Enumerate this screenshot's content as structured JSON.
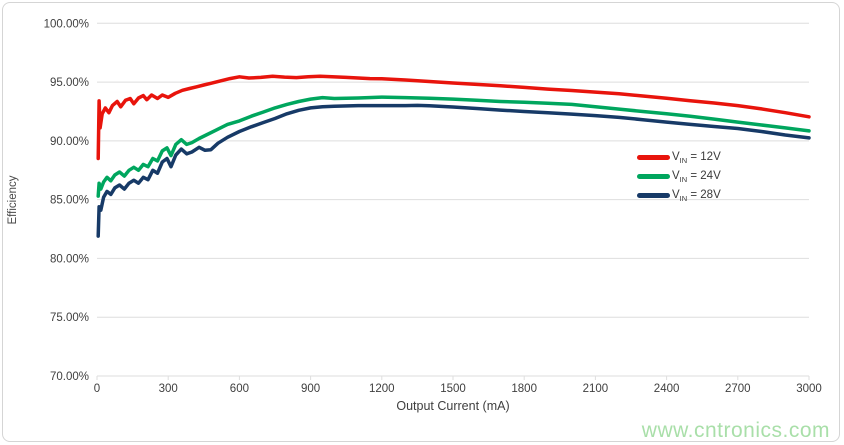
{
  "watermark": {
    "text": "www.cntronics.com"
  },
  "style_colors": {
    "grid": "#dedede",
    "axis_text": "#3f3f3f",
    "watermark_green": "#a9dfa9",
    "frame_border": "#d5d5d5",
    "series_red": "#e8140c",
    "series_green": "#00a65e",
    "series_navy": "#173a67"
  },
  "chart_data": {
    "type": "line",
    "title": "",
    "xlabel": "Output Current (mA)",
    "ylabel": "Efficiency",
    "xlim": [
      0,
      3000
    ],
    "ylim": [
      70,
      100
    ],
    "grid": "horizontal-only",
    "legend_position": "right-middle",
    "x_ticks": [
      0,
      300,
      600,
      900,
      1200,
      1500,
      1800,
      2100,
      2400,
      2700,
      3000
    ],
    "y_ticks": [
      {
        "value": 100,
        "label": "100.00%"
      },
      {
        "value": 95,
        "label": "95.00%"
      },
      {
        "value": 90,
        "label": "90.00%"
      },
      {
        "value": 85,
        "label": "85.00%"
      },
      {
        "value": 80,
        "label": "80.00%"
      },
      {
        "value": 75,
        "label": "75.00%"
      },
      {
        "value": 70,
        "label": "70.00%"
      }
    ],
    "series": [
      {
        "name": "VIN = 12V",
        "label_prefix": "V",
        "label_sub": "IN",
        "label_rest": " = 12V",
        "color": "#e8140c",
        "points": [
          [
            5,
            88.5
          ],
          [
            9,
            93.4
          ],
          [
            13,
            91.1
          ],
          [
            22,
            92.3
          ],
          [
            35,
            92.8
          ],
          [
            50,
            92.4
          ],
          [
            65,
            93.0
          ],
          [
            85,
            93.35
          ],
          [
            100,
            92.9
          ],
          [
            120,
            93.45
          ],
          [
            140,
            93.6
          ],
          [
            155,
            93.15
          ],
          [
            175,
            93.65
          ],
          [
            195,
            93.85
          ],
          [
            210,
            93.5
          ],
          [
            230,
            93.9
          ],
          [
            255,
            93.6
          ],
          [
            275,
            93.9
          ],
          [
            300,
            93.7
          ],
          [
            330,
            94.05
          ],
          [
            360,
            94.3
          ],
          [
            390,
            94.45
          ],
          [
            420,
            94.6
          ],
          [
            450,
            94.75
          ],
          [
            480,
            94.9
          ],
          [
            520,
            95.1
          ],
          [
            560,
            95.3
          ],
          [
            600,
            95.45
          ],
          [
            640,
            95.35
          ],
          [
            690,
            95.4
          ],
          [
            740,
            95.5
          ],
          [
            790,
            95.42
          ],
          [
            840,
            95.38
          ],
          [
            890,
            95.45
          ],
          [
            940,
            95.5
          ],
          [
            990,
            95.45
          ],
          [
            1050,
            95.4
          ],
          [
            1100,
            95.35
          ],
          [
            1150,
            95.3
          ],
          [
            1200,
            95.28
          ],
          [
            1300,
            95.18
          ],
          [
            1400,
            95.05
          ],
          [
            1500,
            94.92
          ],
          [
            1600,
            94.8
          ],
          [
            1700,
            94.68
          ],
          [
            1800,
            94.55
          ],
          [
            1900,
            94.4
          ],
          [
            2000,
            94.28
          ],
          [
            2100,
            94.15
          ],
          [
            2200,
            94.0
          ],
          [
            2300,
            93.82
          ],
          [
            2400,
            93.62
          ],
          [
            2500,
            93.42
          ],
          [
            2600,
            93.22
          ],
          [
            2700,
            93.0
          ],
          [
            2800,
            92.72
          ],
          [
            2900,
            92.4
          ],
          [
            3000,
            92.05
          ]
        ]
      },
      {
        "name": "VIN = 24V",
        "label_prefix": "V",
        "label_sub": "IN",
        "label_rest": " = 24V",
        "color": "#00a65e",
        "points": [
          [
            5,
            85.3
          ],
          [
            9,
            86.4
          ],
          [
            16,
            85.9
          ],
          [
            28,
            86.5
          ],
          [
            42,
            86.9
          ],
          [
            58,
            86.6
          ],
          [
            75,
            87.1
          ],
          [
            95,
            87.35
          ],
          [
            115,
            87.0
          ],
          [
            135,
            87.5
          ],
          [
            155,
            87.75
          ],
          [
            175,
            87.5
          ],
          [
            195,
            88.0
          ],
          [
            215,
            87.8
          ],
          [
            235,
            88.5
          ],
          [
            255,
            88.3
          ],
          [
            275,
            89.15
          ],
          [
            295,
            89.4
          ],
          [
            312,
            88.75
          ],
          [
            332,
            89.7
          ],
          [
            355,
            90.1
          ],
          [
            378,
            89.7
          ],
          [
            400,
            89.85
          ],
          [
            430,
            90.2
          ],
          [
            460,
            90.5
          ],
          [
            500,
            90.9
          ],
          [
            550,
            91.4
          ],
          [
            600,
            91.7
          ],
          [
            650,
            92.1
          ],
          [
            700,
            92.45
          ],
          [
            750,
            92.8
          ],
          [
            800,
            93.1
          ],
          [
            850,
            93.35
          ],
          [
            900,
            93.55
          ],
          [
            950,
            93.68
          ],
          [
            1000,
            93.6
          ],
          [
            1100,
            93.65
          ],
          [
            1200,
            93.72
          ],
          [
            1300,
            93.68
          ],
          [
            1400,
            93.62
          ],
          [
            1500,
            93.55
          ],
          [
            1600,
            93.45
          ],
          [
            1700,
            93.35
          ],
          [
            1800,
            93.28
          ],
          [
            1900,
            93.2
          ],
          [
            2000,
            93.1
          ],
          [
            2100,
            92.9
          ],
          [
            2200,
            92.7
          ],
          [
            2300,
            92.5
          ],
          [
            2400,
            92.3
          ],
          [
            2500,
            92.1
          ],
          [
            2600,
            91.85
          ],
          [
            2700,
            91.6
          ],
          [
            2800,
            91.35
          ],
          [
            2900,
            91.1
          ],
          [
            3000,
            90.85
          ]
        ]
      },
      {
        "name": "VIN = 28V",
        "label_prefix": "V",
        "label_sub": "IN",
        "label_rest": " = 28V",
        "color": "#173a67",
        "points": [
          [
            5,
            81.9
          ],
          [
            9,
            84.4
          ],
          [
            16,
            84.1
          ],
          [
            28,
            85.2
          ],
          [
            42,
            85.7
          ],
          [
            58,
            85.45
          ],
          [
            75,
            86.0
          ],
          [
            95,
            86.25
          ],
          [
            115,
            85.9
          ],
          [
            135,
            86.4
          ],
          [
            155,
            86.65
          ],
          [
            175,
            86.4
          ],
          [
            195,
            86.9
          ],
          [
            215,
            86.7
          ],
          [
            235,
            87.5
          ],
          [
            255,
            87.25
          ],
          [
            275,
            88.2
          ],
          [
            295,
            88.5
          ],
          [
            312,
            87.8
          ],
          [
            332,
            88.8
          ],
          [
            355,
            89.3
          ],
          [
            378,
            88.9
          ],
          [
            400,
            89.05
          ],
          [
            430,
            89.45
          ],
          [
            455,
            89.2
          ],
          [
            480,
            89.25
          ],
          [
            510,
            89.8
          ],
          [
            550,
            90.3
          ],
          [
            600,
            90.8
          ],
          [
            650,
            91.2
          ],
          [
            700,
            91.55
          ],
          [
            750,
            91.9
          ],
          [
            800,
            92.3
          ],
          [
            850,
            92.6
          ],
          [
            900,
            92.8
          ],
          [
            950,
            92.9
          ],
          [
            1000,
            92.95
          ],
          [
            1100,
            93.0
          ],
          [
            1200,
            93.0
          ],
          [
            1300,
            93.0
          ],
          [
            1350,
            93.02
          ],
          [
            1400,
            92.98
          ],
          [
            1500,
            92.88
          ],
          [
            1600,
            92.75
          ],
          [
            1700,
            92.62
          ],
          [
            1800,
            92.5
          ],
          [
            1900,
            92.4
          ],
          [
            2000,
            92.28
          ],
          [
            2100,
            92.15
          ],
          [
            2200,
            92.0
          ],
          [
            2300,
            91.8
          ],
          [
            2400,
            91.6
          ],
          [
            2500,
            91.4
          ],
          [
            2600,
            91.22
          ],
          [
            2700,
            91.05
          ],
          [
            2800,
            90.8
          ],
          [
            2900,
            90.5
          ],
          [
            3000,
            90.25
          ]
        ]
      }
    ]
  }
}
